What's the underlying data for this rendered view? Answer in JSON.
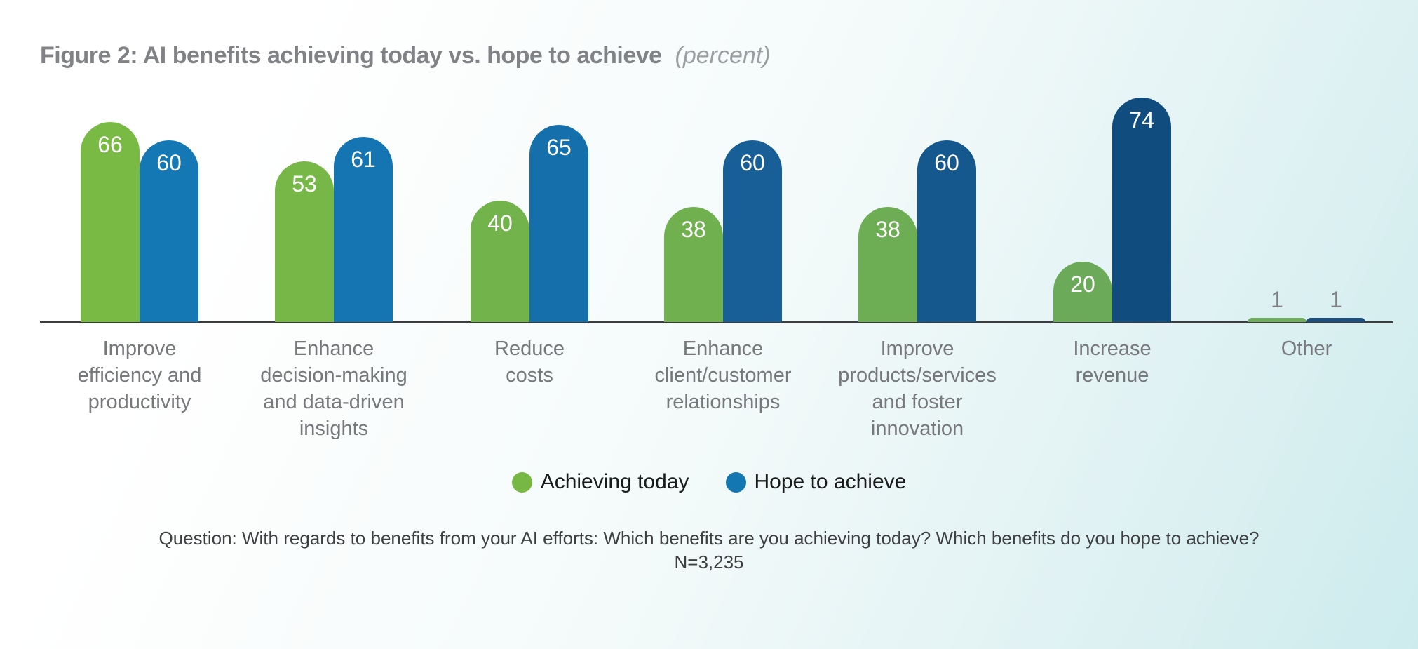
{
  "header": {
    "title": "Figure 2: AI benefits achieving today vs. hope to achieve",
    "unit_note": "(percent)"
  },
  "legend": [
    {
      "label": "Achieving today",
      "color": "#76b843"
    },
    {
      "label": "Hope to achieve",
      "color": "#1377b2"
    }
  ],
  "footer": {
    "question": "Question: With regards to benefits from your AI efforts: Which benefits are you achieving today? Which benefits do you hope to achieve?",
    "sample": "N=3,235"
  },
  "chart_data": {
    "type": "bar",
    "title": "Figure 2: AI benefits achieving today vs. hope to achieve (percent)",
    "unit": "percent",
    "categories": [
      "Improve efficiency and productivity",
      "Enhance decision-making and data-driven insights",
      "Reduce costs",
      "Enhance client/customer relationships",
      "Improve products/services and foster innovation",
      "Increase revenue",
      "Other"
    ],
    "category_lines": [
      [
        "Improve",
        "efficiency and",
        "productivity"
      ],
      [
        "Enhance",
        "decision-making",
        "and data-driven",
        "insights"
      ],
      [
        "Reduce",
        "costs"
      ],
      [
        "Enhance",
        "client/customer",
        "relationships"
      ],
      [
        "Improve",
        "products/services",
        "and foster",
        "innovation"
      ],
      [
        "Increase",
        "revenue"
      ],
      [
        "Other"
      ]
    ],
    "series": [
      {
        "name": "Achieving today",
        "values": [
          66,
          53,
          40,
          38,
          38,
          20,
          1
        ],
        "colors": [
          "#78ba44",
          "#76b747",
          "#73b34b",
          "#70b04f",
          "#6dad53",
          "#6aaa58",
          "#6fab5c"
        ]
      },
      {
        "name": "Hope to achieve",
        "values": [
          60,
          61,
          65,
          60,
          60,
          74,
          1
        ],
        "colors": [
          "#1478b5",
          "#1575b2",
          "#146fab",
          "#175f96",
          "#15588d",
          "#114c7e",
          "#1d4e7c"
        ]
      }
    ],
    "ylim": [
      0,
      80
    ],
    "grid": false,
    "axis_line_color": "#3b3c3d",
    "value_label_style": "white inside rounded bar top; gray above bar when value is too small",
    "legend_position": "bottom-center",
    "bar_cap": "rounded semicircle top"
  }
}
